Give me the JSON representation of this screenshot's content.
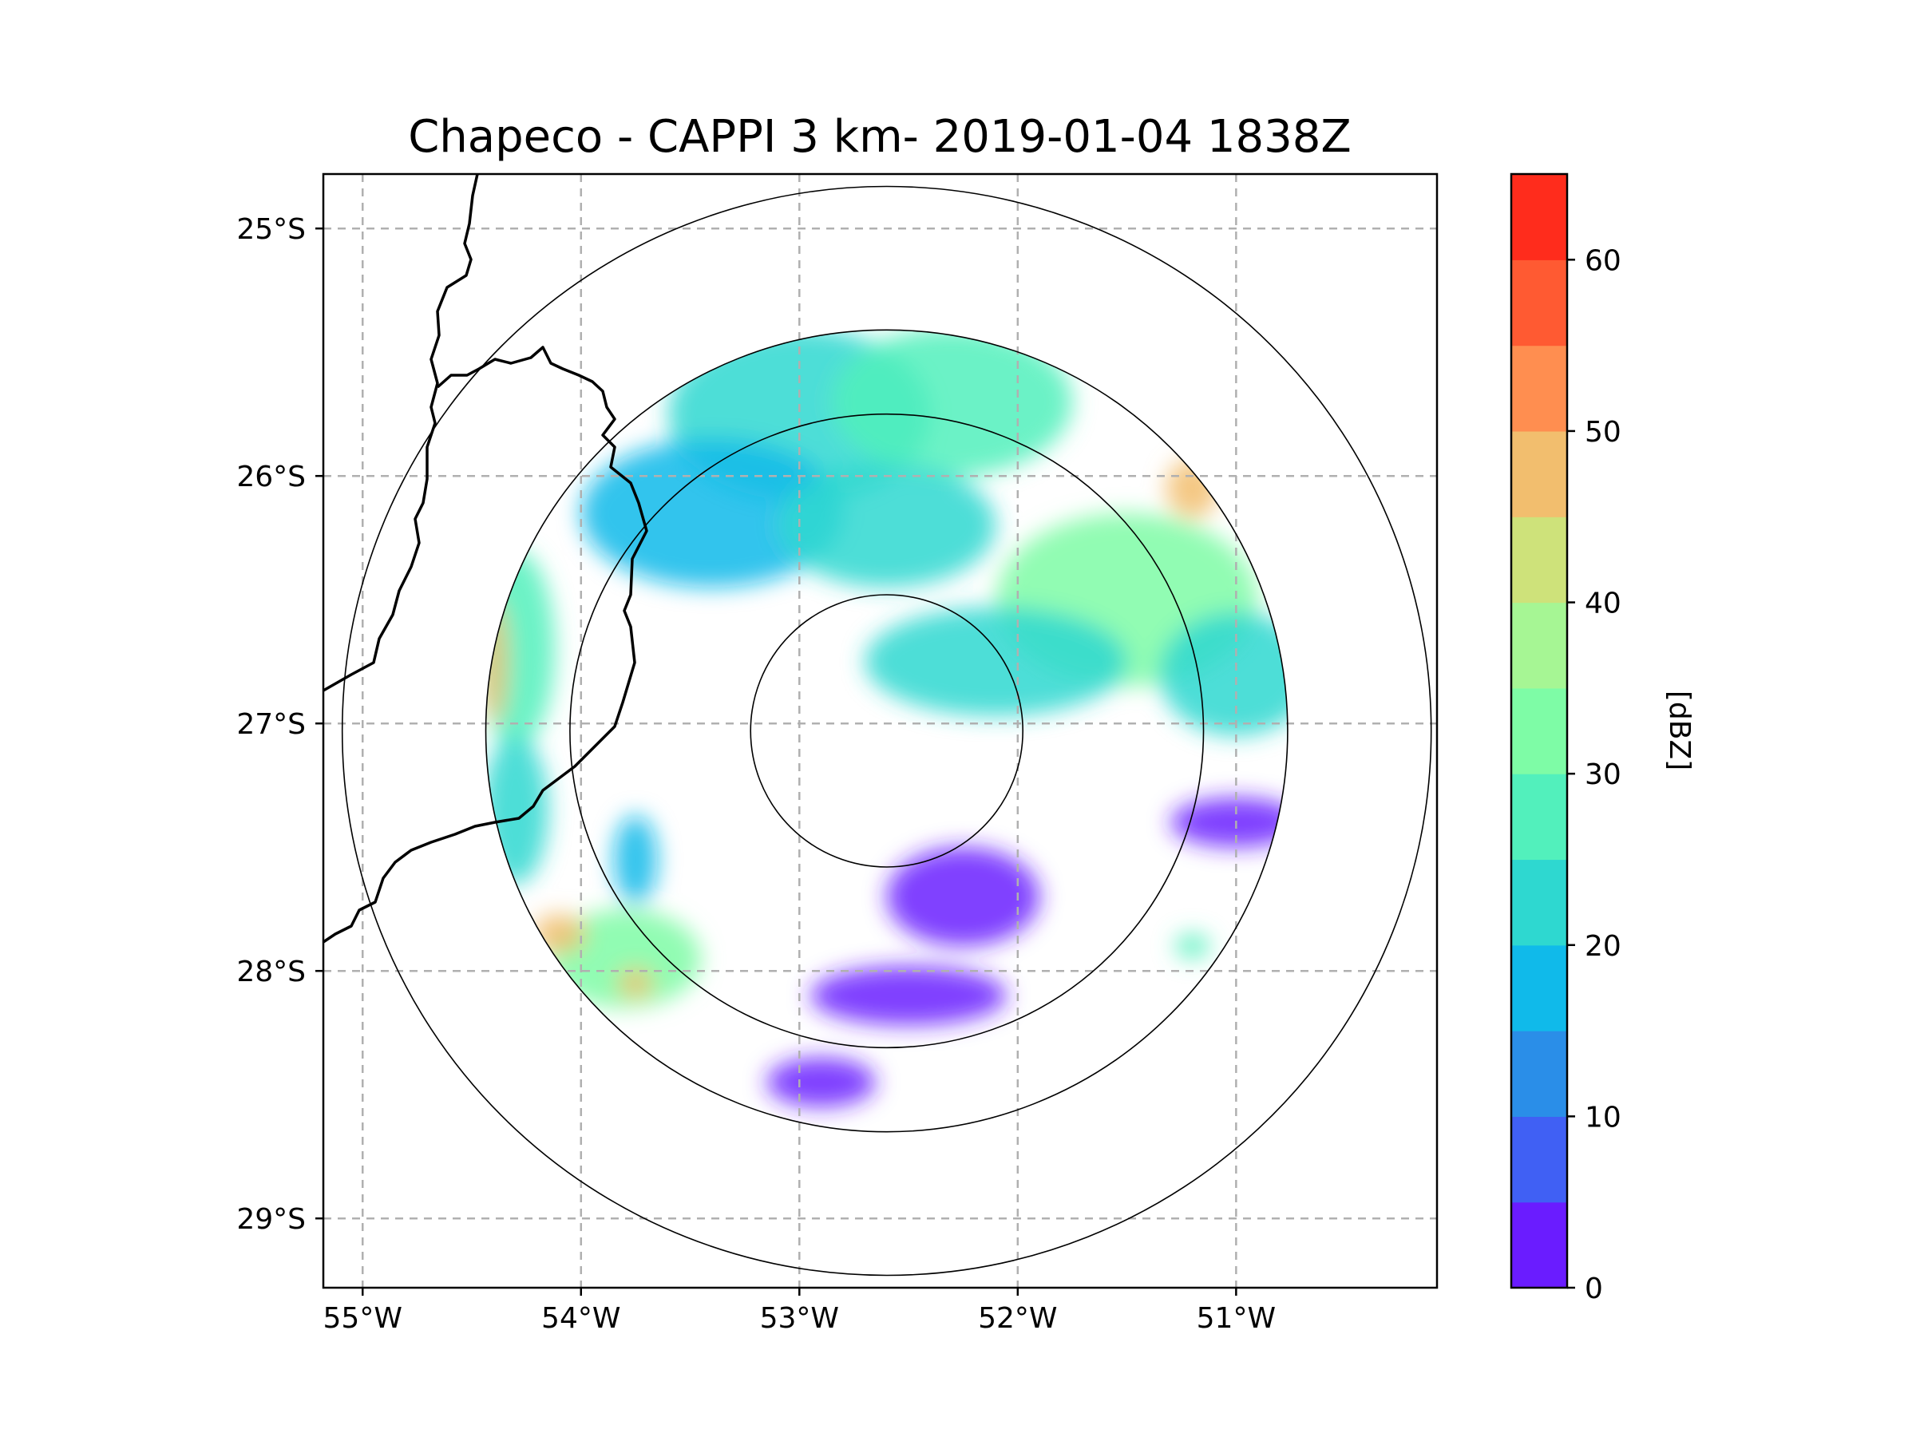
{
  "chart_data": {
    "type": "heatmap",
    "title": "Chapeco - CAPPI 3 km- 2019-01-04 1838Z",
    "xlim": [
      -55.18,
      -50.08
    ],
    "ylim": [
      -29.28,
      -24.78
    ],
    "x_ticks": [
      -55,
      -54,
      -53,
      -52,
      -51
    ],
    "x_tick_labels": [
      "55°W",
      "54°W",
      "53°W",
      "52°W",
      "51°W"
    ],
    "y_ticks": [
      -25,
      -26,
      -27,
      -28,
      -29
    ],
    "y_tick_labels": [
      "25°S",
      "26°S",
      "27°S",
      "28°S",
      "29°S"
    ],
    "grid": true,
    "radar_center": {
      "lon": -52.6,
      "lat": -27.03
    },
    "range_rings_deg_lat": [
      0.55,
      1.28,
      1.62,
      2.2
    ],
    "data_extent_deg_lat": 1.62,
    "colorbar": {
      "label": "[dBZ]",
      "levels": [
        0,
        5,
        10,
        15,
        20,
        25,
        30,
        35,
        40,
        45,
        50,
        55,
        60,
        65
      ],
      "tick_values": [
        0,
        10,
        20,
        30,
        40,
        50,
        60
      ],
      "tick_labels": [
        "0",
        "10",
        "20",
        "30",
        "40",
        "50",
        "60"
      ],
      "colors": [
        "#6a1cff",
        "#4060f4",
        "#2a8ee8",
        "#10baea",
        "#2ed8d0",
        "#52f0bc",
        "#7efca6",
        "#a6f694",
        "#cee27a",
        "#f2be6e",
        "#ff8e50",
        "#ff5a32",
        "#ff2c1c"
      ]
    },
    "reflectivity_cells": [
      {
        "lon": -53.0,
        "lat": -25.75,
        "rx": 0.6,
        "ry": 0.35,
        "dbz": 22
      },
      {
        "lon": -52.3,
        "lat": -25.7,
        "rx": 0.55,
        "ry": 0.3,
        "dbz": 28
      },
      {
        "lon": -53.4,
        "lat": -26.15,
        "rx": 0.6,
        "ry": 0.3,
        "dbz": 18
      },
      {
        "lon": -52.6,
        "lat": -26.2,
        "rx": 0.5,
        "ry": 0.25,
        "dbz": 24
      },
      {
        "lon": -51.5,
        "lat": -26.5,
        "rx": 0.6,
        "ry": 0.35,
        "dbz": 32
      },
      {
        "lon": -51.2,
        "lat": -26.05,
        "rx": 0.12,
        "ry": 0.12,
        "dbz": 48
      },
      {
        "lon": -52.1,
        "lat": -26.75,
        "rx": 0.6,
        "ry": 0.22,
        "dbz": 22
      },
      {
        "lon": -51.0,
        "lat": -26.8,
        "rx": 0.35,
        "ry": 0.25,
        "dbz": 20
      },
      {
        "lon": -54.3,
        "lat": -26.7,
        "rx": 0.18,
        "ry": 0.4,
        "dbz": 26
      },
      {
        "lon": -54.4,
        "lat": -26.75,
        "rx": 0.06,
        "ry": 0.25,
        "dbz": 46
      },
      {
        "lon": -54.3,
        "lat": -27.35,
        "rx": 0.15,
        "ry": 0.3,
        "dbz": 24
      },
      {
        "lon": -53.8,
        "lat": -27.95,
        "rx": 0.35,
        "ry": 0.2,
        "dbz": 30
      },
      {
        "lon": -54.1,
        "lat": -27.85,
        "rx": 0.12,
        "ry": 0.08,
        "dbz": 46
      },
      {
        "lon": -53.75,
        "lat": -28.05,
        "rx": 0.08,
        "ry": 0.06,
        "dbz": 48
      },
      {
        "lon": -53.75,
        "lat": -27.55,
        "rx": 0.1,
        "ry": 0.18,
        "dbz": 16
      },
      {
        "lon": -52.25,
        "lat": -27.7,
        "rx": 0.35,
        "ry": 0.2,
        "dbz": 3
      },
      {
        "lon": -51.0,
        "lat": -27.4,
        "rx": 0.3,
        "ry": 0.1,
        "dbz": 3
      },
      {
        "lon": -51.2,
        "lat": -27.9,
        "rx": 0.08,
        "ry": 0.05,
        "dbz": 26
      },
      {
        "lon": -52.5,
        "lat": -28.1,
        "rx": 0.45,
        "ry": 0.12,
        "dbz": 2
      },
      {
        "lon": -52.9,
        "lat": -28.45,
        "rx": 0.25,
        "ry": 0.1,
        "dbz": 2
      }
    ]
  }
}
